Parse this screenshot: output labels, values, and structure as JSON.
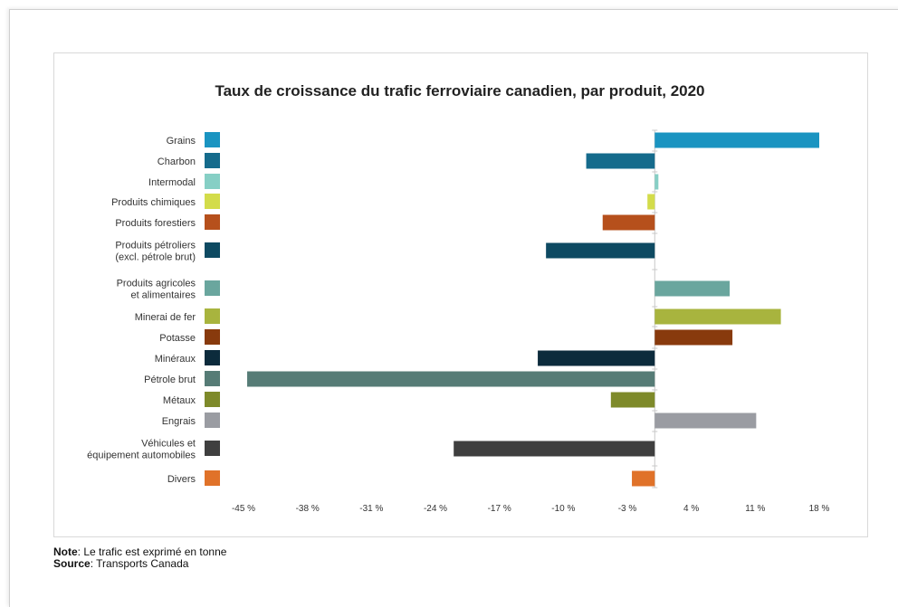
{
  "chart_data": {
    "type": "bar",
    "orientation": "horizontal",
    "title": "Taux de croissance du trafic ferroviaire canadien, par produit, 2020",
    "categories": [
      "Grains",
      "Charbon",
      "Intermodal",
      "Produits chimiques",
      "Produits forestiers",
      "Produits pétroliers\n(excl. pétrole brut)",
      "Produits agricoles\net alimentaires",
      "Minerai de fer",
      "Potasse",
      "Minéraux",
      "Pétrole brut",
      "Métaux",
      "Engrais",
      "Véhicules et\néquipement automobiles",
      "Divers"
    ],
    "values": [
      18,
      -7.5,
      0.4,
      -0.8,
      -5.7,
      -11.9,
      8.2,
      13.8,
      8.5,
      -12.8,
      -44.6,
      -4.8,
      11.1,
      -22,
      -2.5
    ],
    "colors": [
      "#1a94c1",
      "#156b8c",
      "#86cfc5",
      "#d3dc4a",
      "#b6501c",
      "#0e4a62",
      "#6aa69e",
      "#a8b43e",
      "#883a0d",
      "#0c2b3c",
      "#567c76",
      "#7e8a2a",
      "#9a9ca2",
      "#3f3f3f",
      "#e07229"
    ],
    "xticks": [
      "-45 %",
      "-38 %",
      "-31 %",
      "-24 %",
      "-17 %",
      "-10 %",
      "-3 %",
      "4 %",
      "11 %",
      "18 %"
    ],
    "xlim": [
      -45,
      18
    ],
    "xlabel": "",
    "ylabel": "",
    "grid": false,
    "legend": "swatches beside category labels"
  },
  "notes": {
    "note_label": "Note",
    "note_text": ": Le trafic est exprimé en tonne",
    "source_label": "Source",
    "source_text": ": Transports Canada"
  }
}
